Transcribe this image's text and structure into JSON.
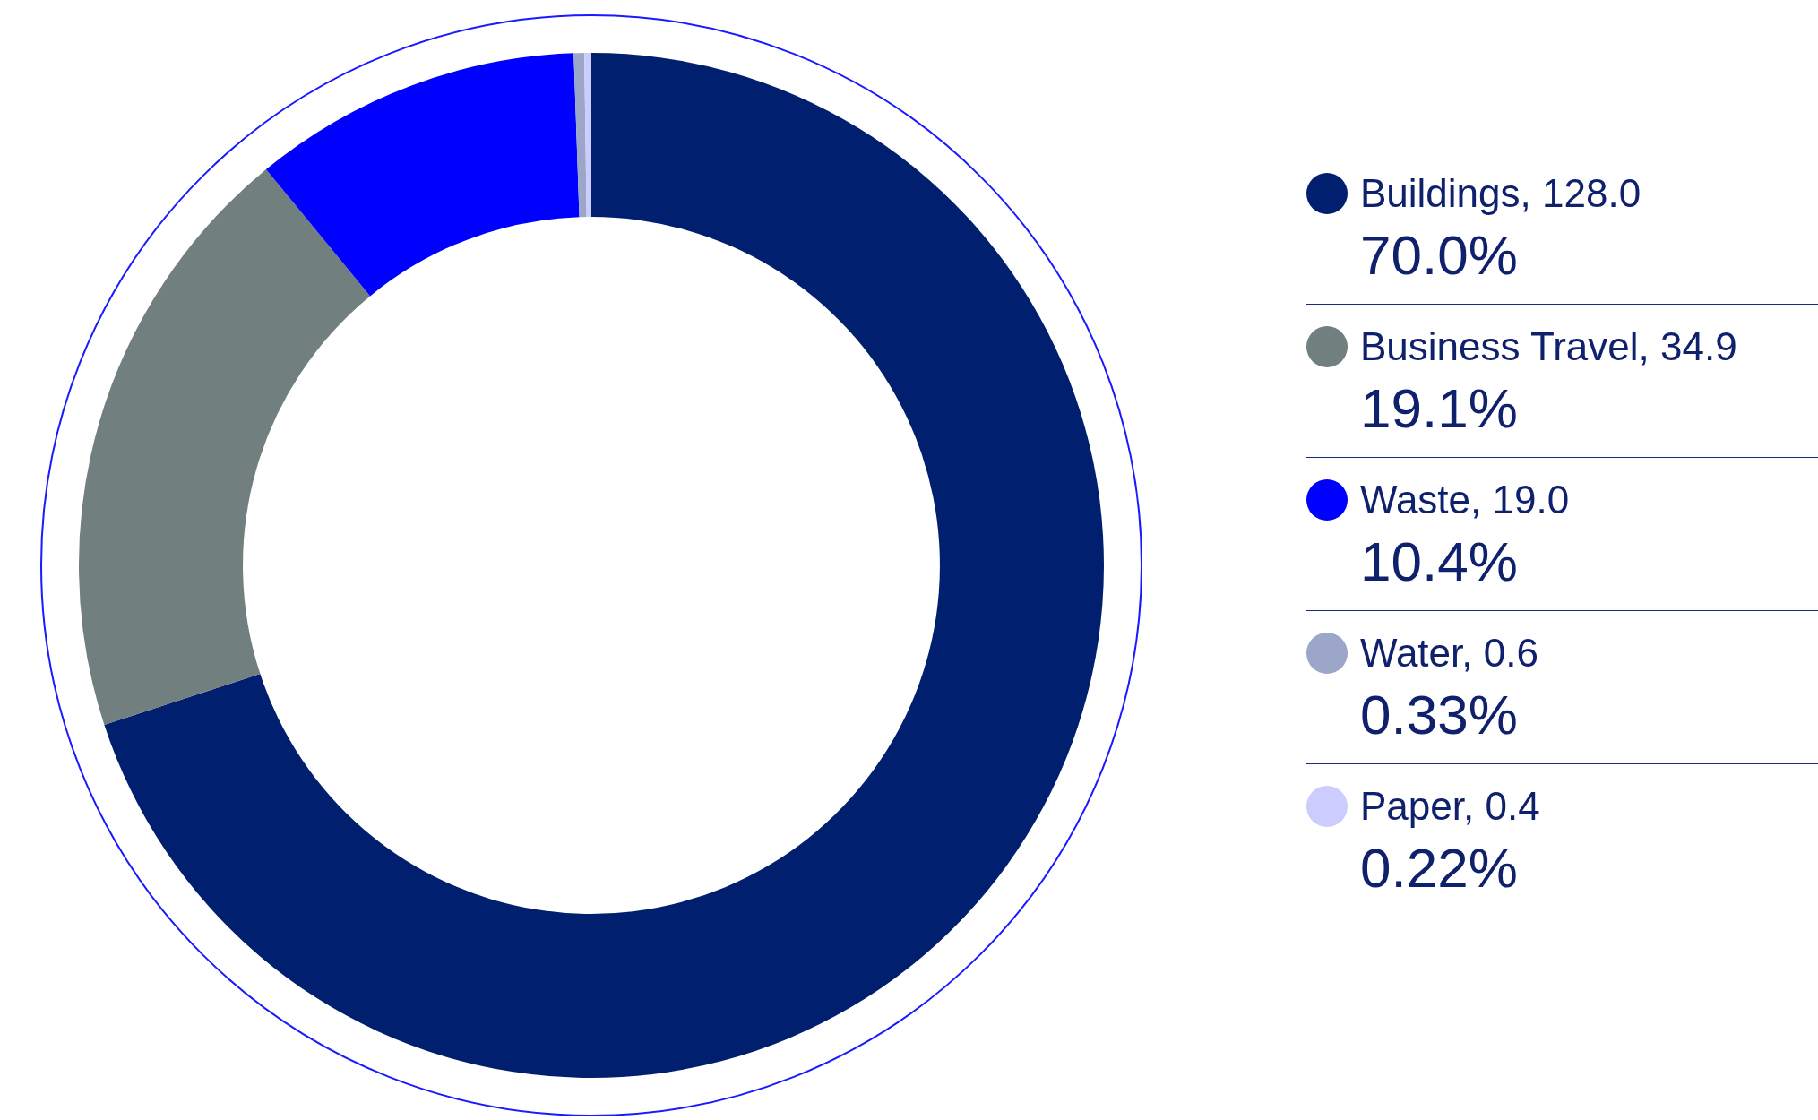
{
  "chart_data": {
    "type": "donut",
    "categories": [
      "Buildings, 128.0",
      "Business Travel, 34.9",
      "Waste, 19.0",
      "Water, 0.6",
      "Paper, 0.4"
    ],
    "values": [
      70.0,
      19.1,
      10.4,
      0.33,
      0.22
    ],
    "colors": [
      "#001f6e",
      "#717f7f",
      "#0000ff",
      "#9ba6c8",
      "#ccccff"
    ],
    "value_labels": [
      "70.0%",
      "19.1%",
      "10.4%",
      "0.33%",
      "0.22%"
    ],
    "legend": "right"
  }
}
